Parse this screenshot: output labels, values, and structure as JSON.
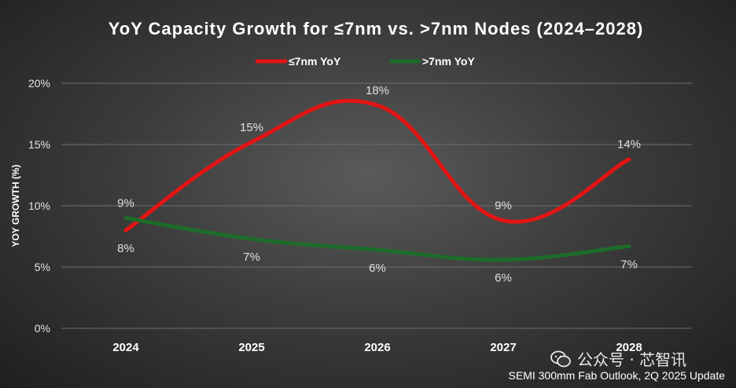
{
  "chart_data": {
    "type": "line",
    "title": "YoY Capacity Growth for ≤7nm vs. >7nm Nodes (2024–2028)",
    "ylabel": "YOY GROWTH (%)",
    "xlabel": "",
    "categories": [
      "2024",
      "2025",
      "2026",
      "2027",
      "2028"
    ],
    "ylim": [
      0,
      20
    ],
    "yticks": [
      0,
      5,
      10,
      15,
      20
    ],
    "ytick_labels": [
      "0%",
      "5%",
      "10%",
      "15%",
      "20%"
    ],
    "grid": true,
    "smooth": true,
    "legend_position": "top",
    "series": [
      {
        "name": "≤7nm YoY",
        "color": "#e31414",
        "values": [
          8,
          15.2,
          18.2,
          8.8,
          13.8
        ],
        "labels": [
          "8%",
          "15%",
          "18%",
          "9%",
          "14%"
        ],
        "label_side": [
          "below",
          "above",
          "above",
          "above",
          "above"
        ]
      },
      {
        "name": ">7nm YoY",
        "color": "#1e6b2a",
        "values": [
          9,
          7.3,
          6.4,
          5.6,
          6.7
        ],
        "labels": [
          "9%",
          "7%",
          "6%",
          "6%",
          "7%"
        ],
        "label_side": [
          "above",
          "below",
          "below",
          "below",
          "below"
        ]
      }
    ]
  },
  "watermark": {
    "text": "公众号 · 芯智讯",
    "icon": "wechat-icon"
  },
  "source": "SEMI 300mm Fab Outlook,  2Q 2025 Update"
}
